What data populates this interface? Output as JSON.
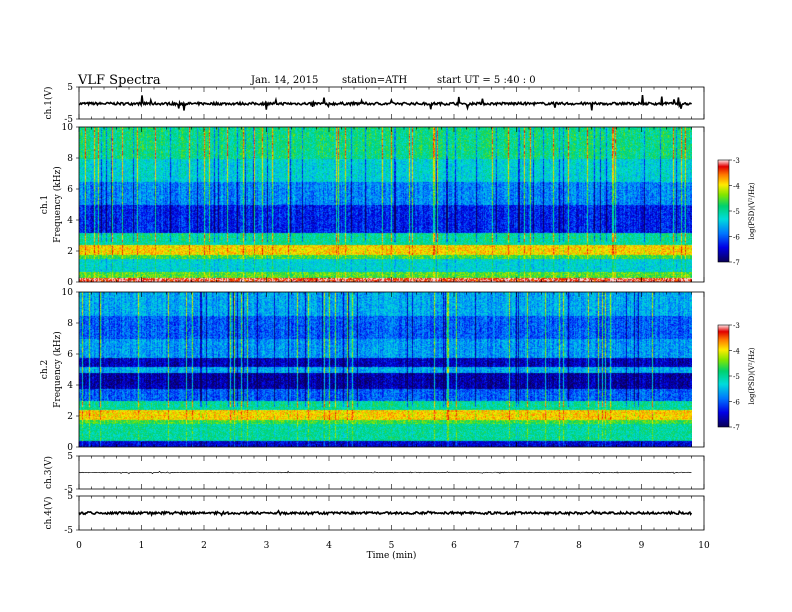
{
  "header": {
    "title": "VLF  Spectra",
    "date": "Jan. 14, 2015",
    "station": "station=ATH",
    "start_time": "start  UT  =   5  :40 : 0"
  },
  "chart_data": [
    {
      "type": "line",
      "name": "ch1-waveform",
      "ylabel": "ch.1(V)",
      "ylim": [
        -5,
        5
      ],
      "y_ticks": [
        "5",
        "-5"
      ],
      "xlim": [
        0,
        10
      ],
      "x_extent_min": [
        0,
        9.8
      ],
      "baseline": -0.2,
      "typical_amplitude": 0.4,
      "spike_amplitude": 2.5
    },
    {
      "type": "heatmap",
      "name": "ch1-spectrogram",
      "ylabel_top": "ch.1",
      "ylabel": "Frequency  (kHz)",
      "ylim": [
        0,
        10
      ],
      "y_ticks": [
        "0",
        "2",
        "4",
        "6",
        "8",
        "10"
      ],
      "xlim": [
        0,
        10
      ],
      "x_extent_min": [
        0,
        9.8
      ],
      "colorbar": {
        "label": "log(PSD)(V²/Hz)",
        "range": [
          -7,
          -3
        ],
        "ticks": [
          "-3",
          "-4",
          "-5",
          "-6",
          "-7"
        ]
      },
      "bands": [
        {
          "f_khz": [
            0,
            0.3
          ],
          "log_psd": -3.2
        },
        {
          "f_khz": [
            0.3,
            0.7
          ],
          "log_psd": -4.5
        },
        {
          "f_khz": [
            0.7,
            1.5
          ],
          "log_psd": -5.3
        },
        {
          "f_khz": [
            1.5,
            1.8
          ],
          "log_psd": -4.6
        },
        {
          "f_khz": [
            1.8,
            2.4
          ],
          "log_psd": -3.9
        },
        {
          "f_khz": [
            2.4,
            3.2
          ],
          "log_psd": -5.0
        },
        {
          "f_khz": [
            3.2,
            5.0
          ],
          "log_psd": -6.3
        },
        {
          "f_khz": [
            5.0,
            6.5
          ],
          "log_psd": -5.8
        },
        {
          "f_khz": [
            6.5,
            8.0
          ],
          "log_psd": -5.3
        },
        {
          "f_khz": [
            8.0,
            10.0
          ],
          "log_psd": -4.9
        }
      ]
    },
    {
      "type": "heatmap",
      "name": "ch2-spectrogram",
      "ylabel_top": "ch.2",
      "ylabel": "Frequency  (kHz)",
      "ylim": [
        0,
        10
      ],
      "y_ticks": [
        "0",
        "2",
        "4",
        "6",
        "8",
        "10"
      ],
      "xlim": [
        0,
        10
      ],
      "x_extent_min": [
        0,
        9.8
      ],
      "colorbar": {
        "label": "log(PSD)(V²/Hz)",
        "range": [
          -7,
          -3
        ],
        "ticks": [
          "-3",
          "-4",
          "-5",
          "-6",
          "-7"
        ]
      },
      "bands": [
        {
          "f_khz": [
            0,
            0.4
          ],
          "log_psd": -6.5
        },
        {
          "f_khz": [
            0.4,
            1.5
          ],
          "log_psd": -5.0
        },
        {
          "f_khz": [
            1.5,
            1.8
          ],
          "log_psd": -4.6
        },
        {
          "f_khz": [
            1.8,
            2.4
          ],
          "log_psd": -3.9
        },
        {
          "f_khz": [
            2.4,
            3.0
          ],
          "log_psd": -5.0
        },
        {
          "f_khz": [
            3.0,
            3.8
          ],
          "log_psd": -6.0
        },
        {
          "f_khz": [
            3.8,
            4.8
          ],
          "log_psd": -6.7
        },
        {
          "f_khz": [
            4.8,
            5.2
          ],
          "log_psd": -5.6
        },
        {
          "f_khz": [
            5.2,
            5.8
          ],
          "log_psd": -6.6
        },
        {
          "f_khz": [
            5.8,
            7.0
          ],
          "log_psd": -5.7
        },
        {
          "f_khz": [
            7.0,
            8.5
          ],
          "log_psd": -6.0
        },
        {
          "f_khz": [
            8.5,
            10.0
          ],
          "log_psd": -5.6
        }
      ]
    },
    {
      "type": "line",
      "name": "ch3-waveform",
      "ylabel": "ch.3(V)",
      "ylim": [
        -5,
        5
      ],
      "y_ticks": [
        "5",
        "-5"
      ],
      "xlim": [
        0,
        10
      ],
      "x_extent_min": [
        0,
        9.8
      ],
      "baseline": 0,
      "typical_amplitude": 0.1,
      "spike_amplitude": 0.3
    },
    {
      "type": "line",
      "name": "ch4-waveform",
      "ylabel": "ch.4(V)",
      "ylim": [
        -5,
        5
      ],
      "y_ticks": [
        "5",
        "-5"
      ],
      "xlim": [
        0,
        10
      ],
      "x_extent_min": [
        0,
        9.8
      ],
      "baseline": 0,
      "typical_amplitude": 0.35,
      "spike_amplitude": 0.35
    }
  ],
  "x_axis": {
    "label": "Time  (min)",
    "ticks": [
      "0",
      "1",
      "2",
      "3",
      "4",
      "5",
      "6",
      "7",
      "8",
      "9",
      "10"
    ]
  }
}
